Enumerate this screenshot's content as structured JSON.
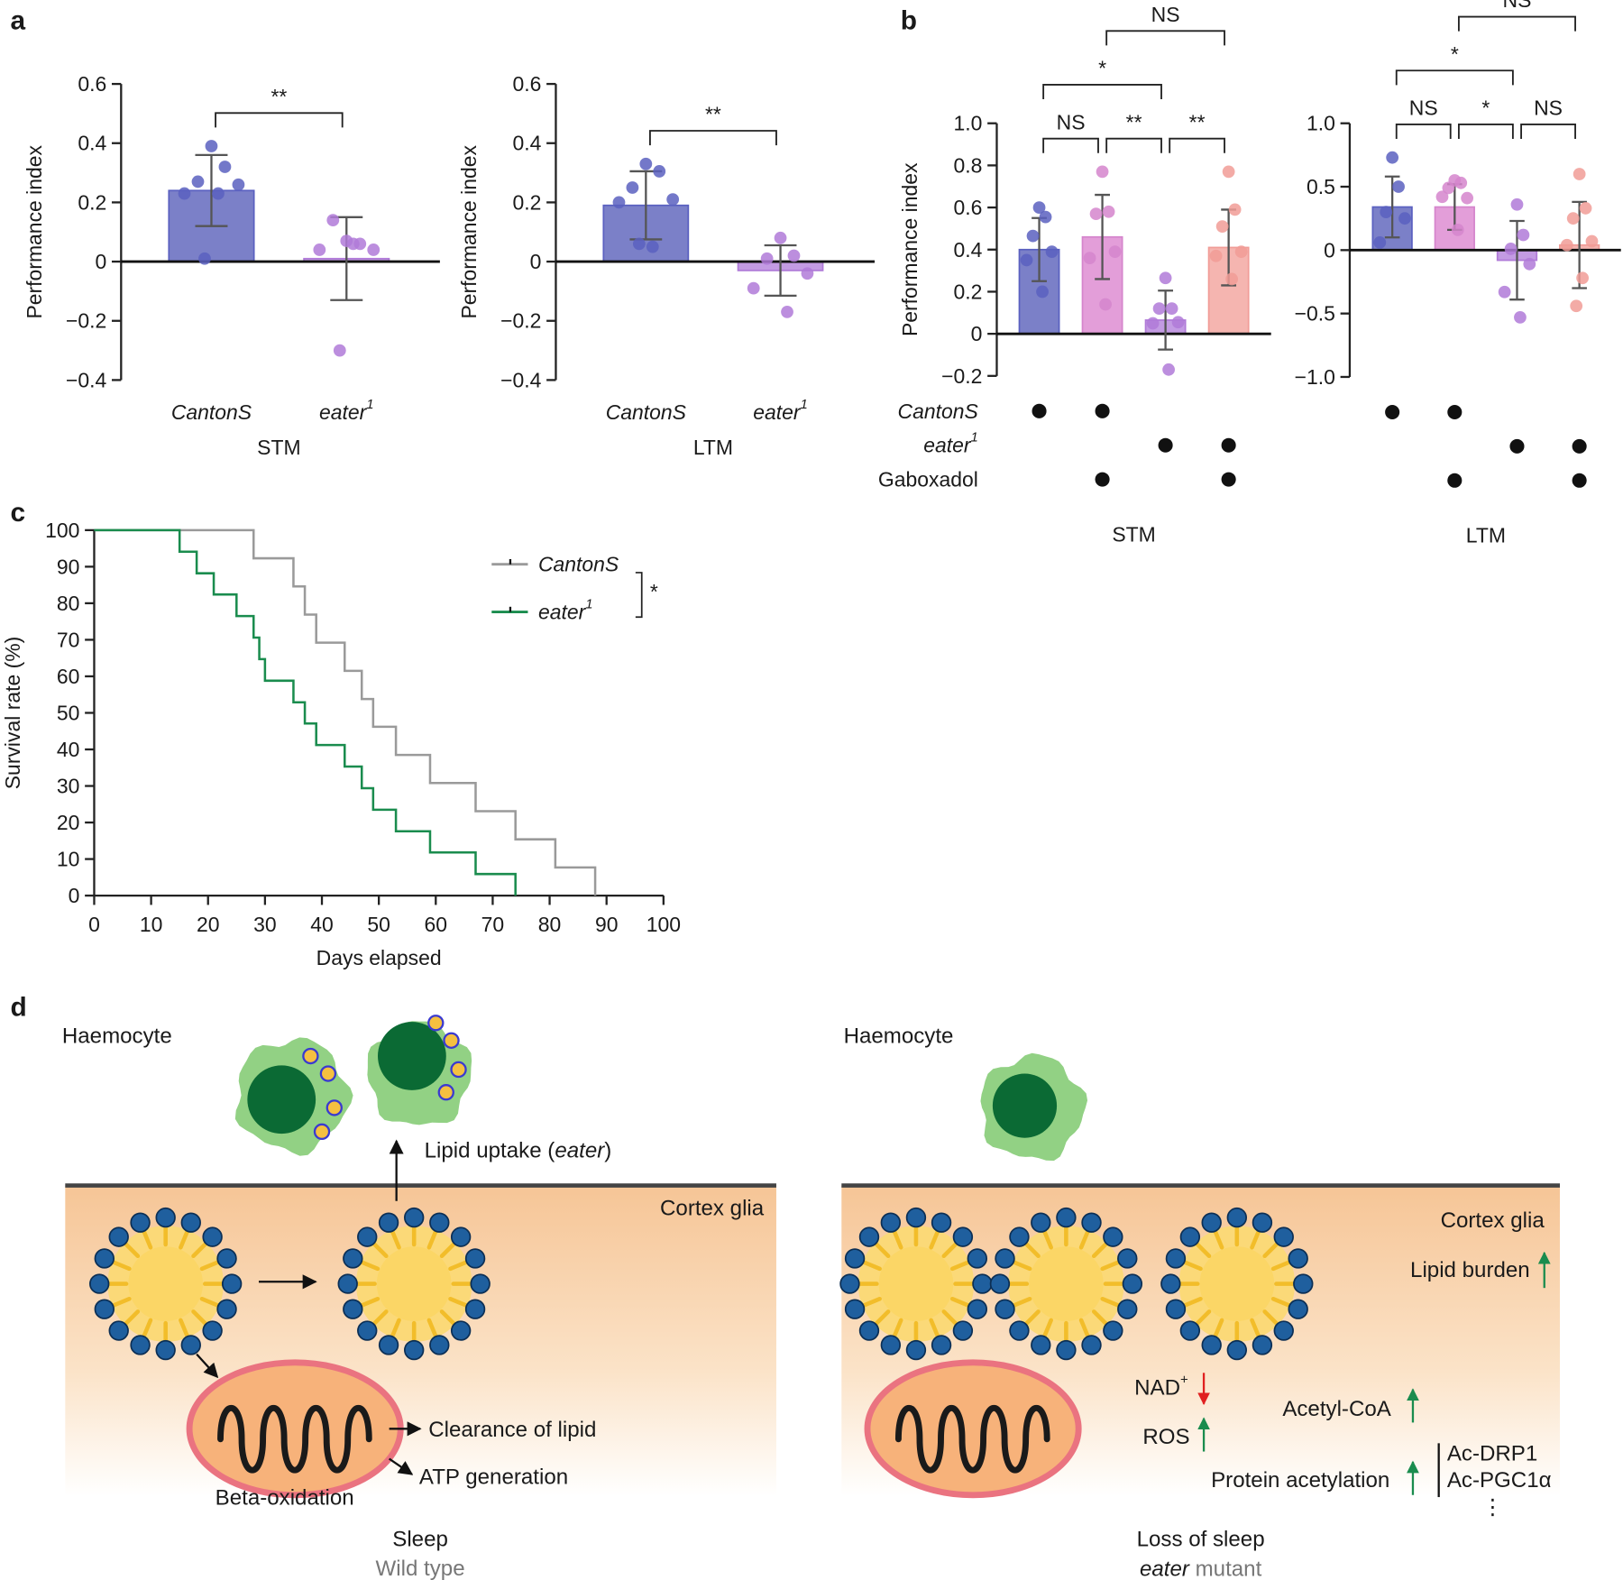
{
  "panels": [
    "a",
    "b",
    "c",
    "d"
  ],
  "chart_data": [
    {
      "type": "bar",
      "ylabel": "Performance index",
      "categories": [
        "CantonS",
        "eater1"
      ],
      "group_label": "STM",
      "values": [
        0.24,
        0.01
      ],
      "errors": [
        0.12,
        0.14
      ],
      "points": [
        [
          0.39,
          0.32,
          0.27,
          0.26,
          0.23,
          0.23,
          0.01
        ],
        [
          0.07,
          0.06,
          0.14,
          0.04,
          0.04,
          0.06,
          -0.3
        ]
      ],
      "colors": [
        "#7b80c8",
        "#c39be3"
      ],
      "point_colors": [
        "#5a60c0",
        "#b07ad8"
      ],
      "ylim": [
        -0.4,
        0.6
      ],
      "yticks": [
        {
          "value": -0.4,
          "label": "−0.4"
        },
        {
          "value": -0.2,
          "label": "−0.2"
        },
        0,
        0.2,
        0.4,
        0.6
      ],
      "brackets": [
        {
          "from": 0,
          "to": 1,
          "label": "**"
        }
      ]
    },
    {
      "type": "bar",
      "ylabel": "Performance index",
      "categories": [
        "CantonS",
        "eater1"
      ],
      "group_label": "LTM",
      "values": [
        0.19,
        -0.03
      ],
      "errors": [
        0.115,
        0.085
      ],
      "points": [
        [
          0.33,
          0.305,
          0.25,
          0.21,
          0.2,
          0.05,
          0.06
        ],
        [
          0.08,
          0.02,
          0.01,
          -0.04,
          -0.09,
          -0.17
        ]
      ],
      "colors": [
        "#7b80c8",
        "#c39be3"
      ],
      "point_colors": [
        "#5a60c0",
        "#b07ad8"
      ],
      "ylim": [
        -0.4,
        0.6
      ],
      "yticks": [
        {
          "value": -0.4,
          "label": "−0.4"
        },
        {
          "value": -0.2,
          "label": "−0.2"
        },
        0,
        0.2,
        0.4,
        0.6
      ],
      "brackets": [
        {
          "from": 0,
          "to": 1,
          "label": "**"
        }
      ]
    },
    {
      "type": "bar",
      "ylabel": "Performance index",
      "group_label": "STM",
      "values": [
        0.4,
        0.46,
        0.065,
        0.41
      ],
      "errors": [
        0.15,
        0.2,
        0.14,
        0.18
      ],
      "points": [
        [
          0.6,
          0.555,
          0.465,
          0.39,
          0.35,
          0.2
        ],
        [
          0.77,
          0.58,
          0.57,
          0.39,
          0.36,
          0.14
        ],
        [
          0.265,
          0.12,
          0.12,
          0.055,
          0.05,
          -0.17
        ],
        [
          0.77,
          0.59,
          0.51,
          0.39,
          0.37,
          0.26
        ]
      ],
      "colors": [
        "#7b80c8",
        "#e39ed9",
        "#c39be3",
        "#f5b5b0"
      ],
      "point_colors": [
        "#5a60c0",
        "#d585cc",
        "#b07ad8",
        "#f19c97"
      ],
      "ylim": [
        -0.2,
        1.0
      ],
      "yticks": [
        {
          "value": -0.2,
          "label": "−0.2"
        },
        0,
        0.2,
        0.4,
        0.6,
        0.8,
        {
          "value": 1,
          "label": "1.0"
        }
      ],
      "brackets": [
        {
          "from": 0,
          "to": 1,
          "label": "NS"
        },
        {
          "from": 1,
          "to": 2,
          "label": "**"
        },
        {
          "from": 2,
          "to": 3,
          "label": "**"
        },
        {
          "from": 0,
          "to": 2,
          "label": "*"
        },
        {
          "from": 1,
          "to": 3,
          "label": "NS"
        }
      ],
      "condition_rows": [
        "CantonS",
        "eater1",
        "Gaboxadol"
      ],
      "condition_rows_italic": [
        true,
        true,
        false
      ],
      "conditions": [
        [
          1,
          1,
          0,
          0
        ],
        [
          0,
          0,
          1,
          1
        ],
        [
          0,
          1,
          0,
          1
        ]
      ]
    },
    {
      "type": "bar",
      "group_label": "LTM",
      "values": [
        0.34,
        0.34,
        -0.08,
        0.04
      ],
      "errors": [
        0.24,
        0.18,
        0.31,
        0.34
      ],
      "points": [
        [
          0.73,
          0.5,
          0.3,
          0.25,
          0.06
        ],
        [
          0.55,
          0.53,
          0.49,
          0.41,
          0.42,
          0.16
        ],
        [
          0.36,
          0.12,
          0.01,
          -0.11,
          -0.33,
          -0.53
        ],
        [
          0.6,
          0.33,
          0.25,
          0.07,
          0.04,
          -0.22,
          -0.44
        ]
      ],
      "colors": [
        "#7b80c8",
        "#e39ed9",
        "#c39be3",
        "#f5b5b0"
      ],
      "point_colors": [
        "#5a60c0",
        "#d585cc",
        "#b07ad8",
        "#f19c97"
      ],
      "ylim": [
        -1.0,
        1.0
      ],
      "yticks": [
        {
          "value": -1,
          "label": "−1.0"
        },
        {
          "value": -0.5,
          "label": "−0.5"
        },
        0,
        0.5,
        {
          "value": 1,
          "label": "1.0"
        }
      ],
      "brackets": [
        {
          "from": 0,
          "to": 1,
          "label": "NS"
        },
        {
          "from": 1,
          "to": 2,
          "label": "*"
        },
        {
          "from": 2,
          "to": 3,
          "label": "NS"
        },
        {
          "from": 0,
          "to": 2,
          "label": "*"
        },
        {
          "from": 1,
          "to": 3,
          "label": "NS"
        }
      ],
      "conditions": [
        [
          1,
          1,
          0,
          0
        ],
        [
          0,
          0,
          1,
          1
        ],
        [
          0,
          1,
          0,
          1
        ]
      ]
    },
    {
      "type": "step",
      "xlabel": "Days elapsed",
      "ylabel": "Survival rate (%)",
      "xlim": [
        0,
        100
      ],
      "ylim": [
        0,
        100
      ],
      "xticks": [
        0,
        10,
        20,
        30,
        40,
        50,
        60,
        70,
        80,
        90,
        100
      ],
      "yticks": [
        0,
        10,
        20,
        30,
        40,
        50,
        60,
        70,
        80,
        90,
        100
      ],
      "legend": "upper right",
      "legend_annotation": "*",
      "series": [
        {
          "name": "CantonS",
          "color": "#9a9a9a",
          "x": [
            0,
            28,
            35,
            37,
            39,
            44,
            47,
            49,
            53,
            59,
            67,
            74,
            81,
            88
          ],
          "values": [
            100,
            92.3,
            84.6,
            76.9,
            69.2,
            61.5,
            53.8,
            46.2,
            38.5,
            30.8,
            23.1,
            15.4,
            7.7,
            0
          ]
        },
        {
          "name": "eater1",
          "color": "#1a8c4e",
          "x": [
            0,
            15,
            18,
            21,
            25,
            28,
            29,
            30,
            35,
            37,
            39,
            44,
            47,
            49,
            53,
            59,
            67,
            74
          ],
          "values": [
            100,
            94.1,
            88.2,
            82.4,
            76.5,
            70.6,
            64.7,
            58.8,
            52.9,
            47.1,
            41.2,
            35.3,
            29.4,
            23.5,
            17.6,
            11.8,
            5.9,
            0
          ]
        }
      ]
    }
  ],
  "diagram": {
    "left": {
      "haemocyte": "Haemocyte",
      "uptake": [
        "Lipid uptake (",
        "eater",
        ")"
      ],
      "glia": "Cortex glia",
      "clearance": "Clearance of lipid",
      "atp": "ATP generation",
      "beta": "Beta-oxidation",
      "state": "Sleep",
      "genotype": "Wild type"
    },
    "right": {
      "haemocyte": "Haemocyte",
      "glia": "Cortex glia",
      "burden": "Lipid burden",
      "nad": [
        "NAD",
        "+"
      ],
      "ros": "ROS",
      "acetyl": "Acetyl-CoA",
      "protein": "Protein acetylation",
      "targets": [
        "Ac-DRP1",
        "Ac-PGC1α",
        "⋮"
      ],
      "state": "Loss of sleep",
      "genotype": [
        "eater",
        " mutant"
      ]
    }
  }
}
